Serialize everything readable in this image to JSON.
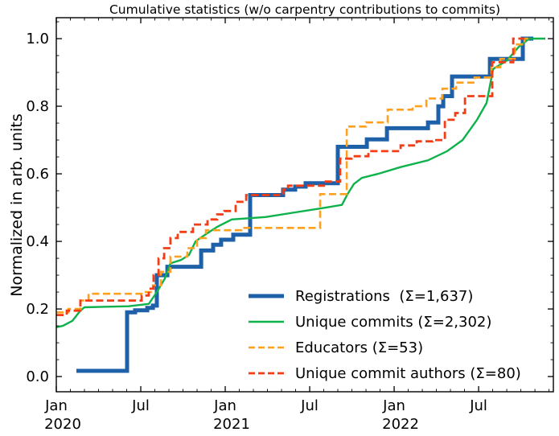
{
  "title": "Cumulative statistics (w/o carpentry contributions to commits)",
  "axes": {
    "ylabel": "Normalized in arb. units",
    "ylim": [
      -0.045,
      1.062
    ],
    "xlim_months": [
      0,
      35.31
    ],
    "y_major_ticks": [
      {
        "v": 0.0,
        "label": "0.0"
      },
      {
        "v": 0.2,
        "label": "0.2"
      },
      {
        "v": 0.4,
        "label": "0.4"
      },
      {
        "v": 0.6,
        "label": "0.6"
      },
      {
        "v": 0.8,
        "label": "0.8"
      },
      {
        "v": 1.0,
        "label": "1.0"
      }
    ],
    "y_minor_step": 0.05,
    "x_major_ticks": [
      {
        "m": 0,
        "month": "Jan",
        "year": "2020"
      },
      {
        "m": 6,
        "month": "Jul",
        "year": ""
      },
      {
        "m": 12,
        "month": "Jan",
        "year": "2021"
      },
      {
        "m": 18,
        "month": "Jul",
        "year": ""
      },
      {
        "m": 24,
        "month": "Jan",
        "year": "2022"
      },
      {
        "m": 30,
        "month": "Jul",
        "year": ""
      }
    ],
    "x_minor_step_months": 1,
    "grid": false,
    "tick_direction": "in",
    "ticks_on_all_sides": true
  },
  "chart_data": {
    "type": "line",
    "title": "Cumulative statistics (w/o carpentry contributions to commits)",
    "xlabel": "",
    "ylabel": "Normalized in arb. units",
    "x_unit": "months since 2020-01-01",
    "legend_position": "lower right inside",
    "series": [
      {
        "name": "Registrations",
        "label": "Registrations  (Σ=1,637)",
        "total": "1,637",
        "color": "#1e61a8",
        "width": 5,
        "dash": null,
        "step": true,
        "points": [
          [
            1.43,
            0.017
          ],
          [
            5.03,
            0.19
          ],
          [
            5.6,
            0.196
          ],
          [
            6.46,
            0.203
          ],
          [
            6.86,
            0.21
          ],
          [
            7.14,
            0.3
          ],
          [
            7.89,
            0.325
          ],
          [
            10.29,
            0.373
          ],
          [
            11.14,
            0.39
          ],
          [
            11.71,
            0.405
          ],
          [
            12.57,
            0.42
          ],
          [
            13.77,
            0.537
          ],
          [
            16.11,
            0.553
          ],
          [
            16.97,
            0.562
          ],
          [
            17.71,
            0.572
          ],
          [
            20.0,
            0.68
          ],
          [
            22.06,
            0.702
          ],
          [
            23.49,
            0.735
          ],
          [
            26.4,
            0.752
          ],
          [
            27.14,
            0.8
          ],
          [
            27.49,
            0.83
          ],
          [
            28.11,
            0.888
          ],
          [
            30.8,
            0.94
          ],
          [
            33.14,
            1.0
          ],
          [
            33.89,
            1.0
          ]
        ]
      },
      {
        "name": "Unique commits",
        "label": "Unique commits (Σ=2,302)",
        "total": "2,302",
        "color": "#0db24b",
        "width": 2.4,
        "dash": null,
        "step": false,
        "points": [
          [
            0,
            0.146
          ],
          [
            0.46,
            0.15
          ],
          [
            1.14,
            0.165
          ],
          [
            1.71,
            0.195
          ],
          [
            2.0,
            0.205
          ],
          [
            5.14,
            0.208
          ],
          [
            6.57,
            0.215
          ],
          [
            7.14,
            0.25
          ],
          [
            7.71,
            0.29
          ],
          [
            8.11,
            0.335
          ],
          [
            8.86,
            0.345
          ],
          [
            9.43,
            0.36
          ],
          [
            9.89,
            0.4
          ],
          [
            10.57,
            0.42
          ],
          [
            11.43,
            0.443
          ],
          [
            12.46,
            0.465
          ],
          [
            14.86,
            0.472
          ],
          [
            16.97,
            0.486
          ],
          [
            19.14,
            0.5
          ],
          [
            20.29,
            0.508
          ],
          [
            20.69,
            0.54
          ],
          [
            21.14,
            0.57
          ],
          [
            21.71,
            0.588
          ],
          [
            22.86,
            0.6
          ],
          [
            24.46,
            0.62
          ],
          [
            26.4,
            0.64
          ],
          [
            27.77,
            0.667
          ],
          [
            28.86,
            0.7
          ],
          [
            29.89,
            0.76
          ],
          [
            30.57,
            0.81
          ],
          [
            31.03,
            0.91
          ],
          [
            32.0,
            0.935
          ],
          [
            32.86,
            0.976
          ],
          [
            33.6,
            1.0
          ],
          [
            34.74,
            1.0
          ]
        ]
      },
      {
        "name": "Educators",
        "label": "Educators (Σ=53)",
        "total": "53",
        "color": "#ffa01e",
        "width": 2.6,
        "dash": "9 4.5",
        "step": true,
        "points": [
          [
            0,
            0.19
          ],
          [
            0.86,
            0.2
          ],
          [
            1.71,
            0.225
          ],
          [
            2.29,
            0.245
          ],
          [
            6.17,
            0.25
          ],
          [
            6.86,
            0.27
          ],
          [
            7.43,
            0.31
          ],
          [
            8.11,
            0.355
          ],
          [
            9.31,
            0.38
          ],
          [
            10.0,
            0.41
          ],
          [
            10.63,
            0.433
          ],
          [
            13.14,
            0.44
          ],
          [
            18.74,
            0.54
          ],
          [
            20.63,
            0.74
          ],
          [
            22.0,
            0.752
          ],
          [
            23.54,
            0.79
          ],
          [
            25.31,
            0.8
          ],
          [
            26.29,
            0.823
          ],
          [
            27.43,
            0.852
          ],
          [
            28.4,
            0.87
          ],
          [
            29.71,
            0.885
          ],
          [
            30.91,
            0.915
          ],
          [
            31.54,
            0.94
          ],
          [
            32.57,
            0.983
          ],
          [
            33.26,
            1.0
          ],
          [
            33.77,
            1.0
          ]
        ]
      },
      {
        "name": "Unique commit authors",
        "label": "Unique commit authors (Σ=80)",
        "total": "80",
        "color": "#f43d14",
        "width": 2.8,
        "dash": "9 4.5",
        "step": true,
        "points": [
          [
            0,
            0.182
          ],
          [
            0.74,
            0.195
          ],
          [
            1.71,
            0.225
          ],
          [
            6.06,
            0.24
          ],
          [
            6.57,
            0.26
          ],
          [
            6.91,
            0.3
          ],
          [
            7.26,
            0.35
          ],
          [
            7.66,
            0.38
          ],
          [
            8.11,
            0.41
          ],
          [
            8.63,
            0.428
          ],
          [
            9.71,
            0.45
          ],
          [
            10.74,
            0.465
          ],
          [
            11.43,
            0.48
          ],
          [
            11.94,
            0.49
          ],
          [
            12.74,
            0.517
          ],
          [
            13.49,
            0.537
          ],
          [
            16.11,
            0.553
          ],
          [
            16.46,
            0.565
          ],
          [
            19.14,
            0.577
          ],
          [
            20.17,
            0.645
          ],
          [
            20.97,
            0.652
          ],
          [
            22.17,
            0.667
          ],
          [
            24.46,
            0.684
          ],
          [
            25.6,
            0.696
          ],
          [
            26.74,
            0.7
          ],
          [
            27.6,
            0.76
          ],
          [
            28.34,
            0.78
          ],
          [
            29.03,
            0.83
          ],
          [
            30.97,
            0.93
          ],
          [
            32.46,
            1.0
          ],
          [
            33.26,
            1.0
          ]
        ]
      }
    ]
  },
  "colors": {
    "background": "#ffffff",
    "axis": "#000000",
    "registrations": "#1e61a8",
    "unique_commits": "#0db24b",
    "educators": "#ffa01e",
    "unique_commit_authors": "#f43d14"
  }
}
